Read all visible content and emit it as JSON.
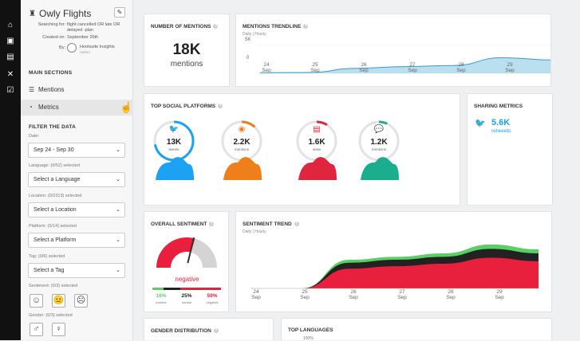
{
  "colors": {
    "twitter": "#1da1f2",
    "rss": "#ef7f1a",
    "news": "#e0263e",
    "forum": "#1aae8f",
    "positive": "#5ad064",
    "neutral": "#222222",
    "negative": "#e8203e",
    "trend_area": "#a9d7ea",
    "trend_line": "#3a9cc8"
  },
  "nav": {
    "icons": [
      "home-icon",
      "dashboard-icon",
      "reports-icon",
      "tools-icon",
      "check-icon"
    ]
  },
  "sidebar": {
    "title": "Owly Flights",
    "searching_label": "Searching for:",
    "searching_value_1": "flight cancelled OR late OR",
    "searching_value_2": "delayed -plan",
    "created_label": "Created on:",
    "created_value": "September 26th",
    "by_label": "By:",
    "by_name": "Hootsuite Insights",
    "by_role": "Admin",
    "main_sections": "MAIN SECTIONS",
    "mentions": "Mentions",
    "metrics": "Metrics",
    "filter": "FILTER THE DATA",
    "date_label": "Date:",
    "date_value": "Sep 24 - Sep 30",
    "language_label": "Language: (0/52) selected",
    "language_value": "Select a Language",
    "location_label": "Location: (0/2313) selected",
    "location_value": "Select a Location",
    "platform_label": "Platform: (0/14) selected",
    "platform_value": "Select a Platform",
    "tag_label": "Tag: (0/6) selected",
    "tag_value": "Select a Tag",
    "sentiment_label": "Sentiment: (0/3) selected",
    "gender_label": "Gender: (0/3) selected"
  },
  "mentions_card": {
    "title": "NUMBER OF MENTIONS",
    "value": "18K",
    "unit": "mentions"
  },
  "trendline": {
    "title": "MENTIONS TRENDLINE",
    "toggle_daily": "Daily",
    "toggle_sep": "|",
    "toggle_hourly": "Hourly",
    "y_top": "5K",
    "y_bottom": "0",
    "ticks": [
      {
        "day": "24",
        "mon": "Sep"
      },
      {
        "day": "25",
        "mon": "Sep"
      },
      {
        "day": "26",
        "mon": "Sep"
      },
      {
        "day": "27",
        "mon": "Sep"
      },
      {
        "day": "28",
        "mon": "Sep"
      },
      {
        "day": "29",
        "mon": "Sep"
      }
    ]
  },
  "chart_data": [
    {
      "type": "area",
      "title": "MENTIONS TRENDLINE",
      "x": [
        "24 Sep",
        "25 Sep",
        "26 Sep",
        "27 Sep",
        "28 Sep",
        "29 Sep",
        "30 Sep"
      ],
      "values": [
        100,
        150,
        900,
        1200,
        1400,
        2800,
        2400
      ],
      "ylim": [
        0,
        5000
      ]
    },
    {
      "type": "area",
      "title": "SENTIMENT TREND",
      "x": [
        "24 Sep",
        "25 Sep",
        "26 Sep",
        "27 Sep",
        "28 Sep",
        "29 Sep",
        "30 Sep"
      ],
      "series": [
        {
          "name": "negative",
          "values": [
            0,
            0,
            40,
            45,
            50,
            62,
            55
          ]
        },
        {
          "name": "neutral",
          "values": [
            0,
            0,
            12,
            13,
            14,
            18,
            16
          ]
        },
        {
          "name": "positive",
          "values": [
            0,
            0,
            6,
            6,
            7,
            9,
            8
          ]
        }
      ]
    }
  ],
  "platforms": {
    "title": "TOP SOCIAL PLATFORMS",
    "items": [
      {
        "name": "twitter",
        "value": "13K",
        "unit": "tweets",
        "icon": "twitter-icon",
        "fill": 0.72
      },
      {
        "name": "rss",
        "value": "2.2K",
        "unit": "mentions",
        "icon": "rss-icon",
        "fill": 0.12
      },
      {
        "name": "news",
        "value": "1.6K",
        "unit": "news",
        "icon": "news-icon",
        "fill": 0.09
      },
      {
        "name": "forum",
        "value": "1.2K",
        "unit": "mentions",
        "icon": "chat-icon",
        "fill": 0.07
      }
    ]
  },
  "sharing": {
    "title": "SHARING METRICS",
    "value": "5.6K",
    "unit": "retweets"
  },
  "overall": {
    "title": "OVERALL SENTIMENT",
    "label": "negative",
    "pos_pct": "16%",
    "pos_lbl": "positive",
    "neu_pct": "25%",
    "neu_lbl": "neutral",
    "neg_pct": "59%",
    "neg_lbl": "negative",
    "positive": 16,
    "neutral": 25,
    "negative": 59
  },
  "sent_trend": {
    "title": "SENTIMENT TREND",
    "toggle_daily": "Daily",
    "toggle_sep": "|",
    "toggle_hourly": "Hourly",
    "ticks": [
      {
        "day": "24",
        "mon": "Sep"
      },
      {
        "day": "25",
        "mon": "Sep"
      },
      {
        "day": "26",
        "mon": "Sep"
      },
      {
        "day": "27",
        "mon": "Sep"
      },
      {
        "day": "28",
        "mon": "Sep"
      },
      {
        "day": "29",
        "mon": "Sep"
      }
    ]
  },
  "gender": {
    "title": "GENDER DISTRIBUTION"
  },
  "languages": {
    "title": "TOP LANGUAGES",
    "top_value": "100%"
  }
}
